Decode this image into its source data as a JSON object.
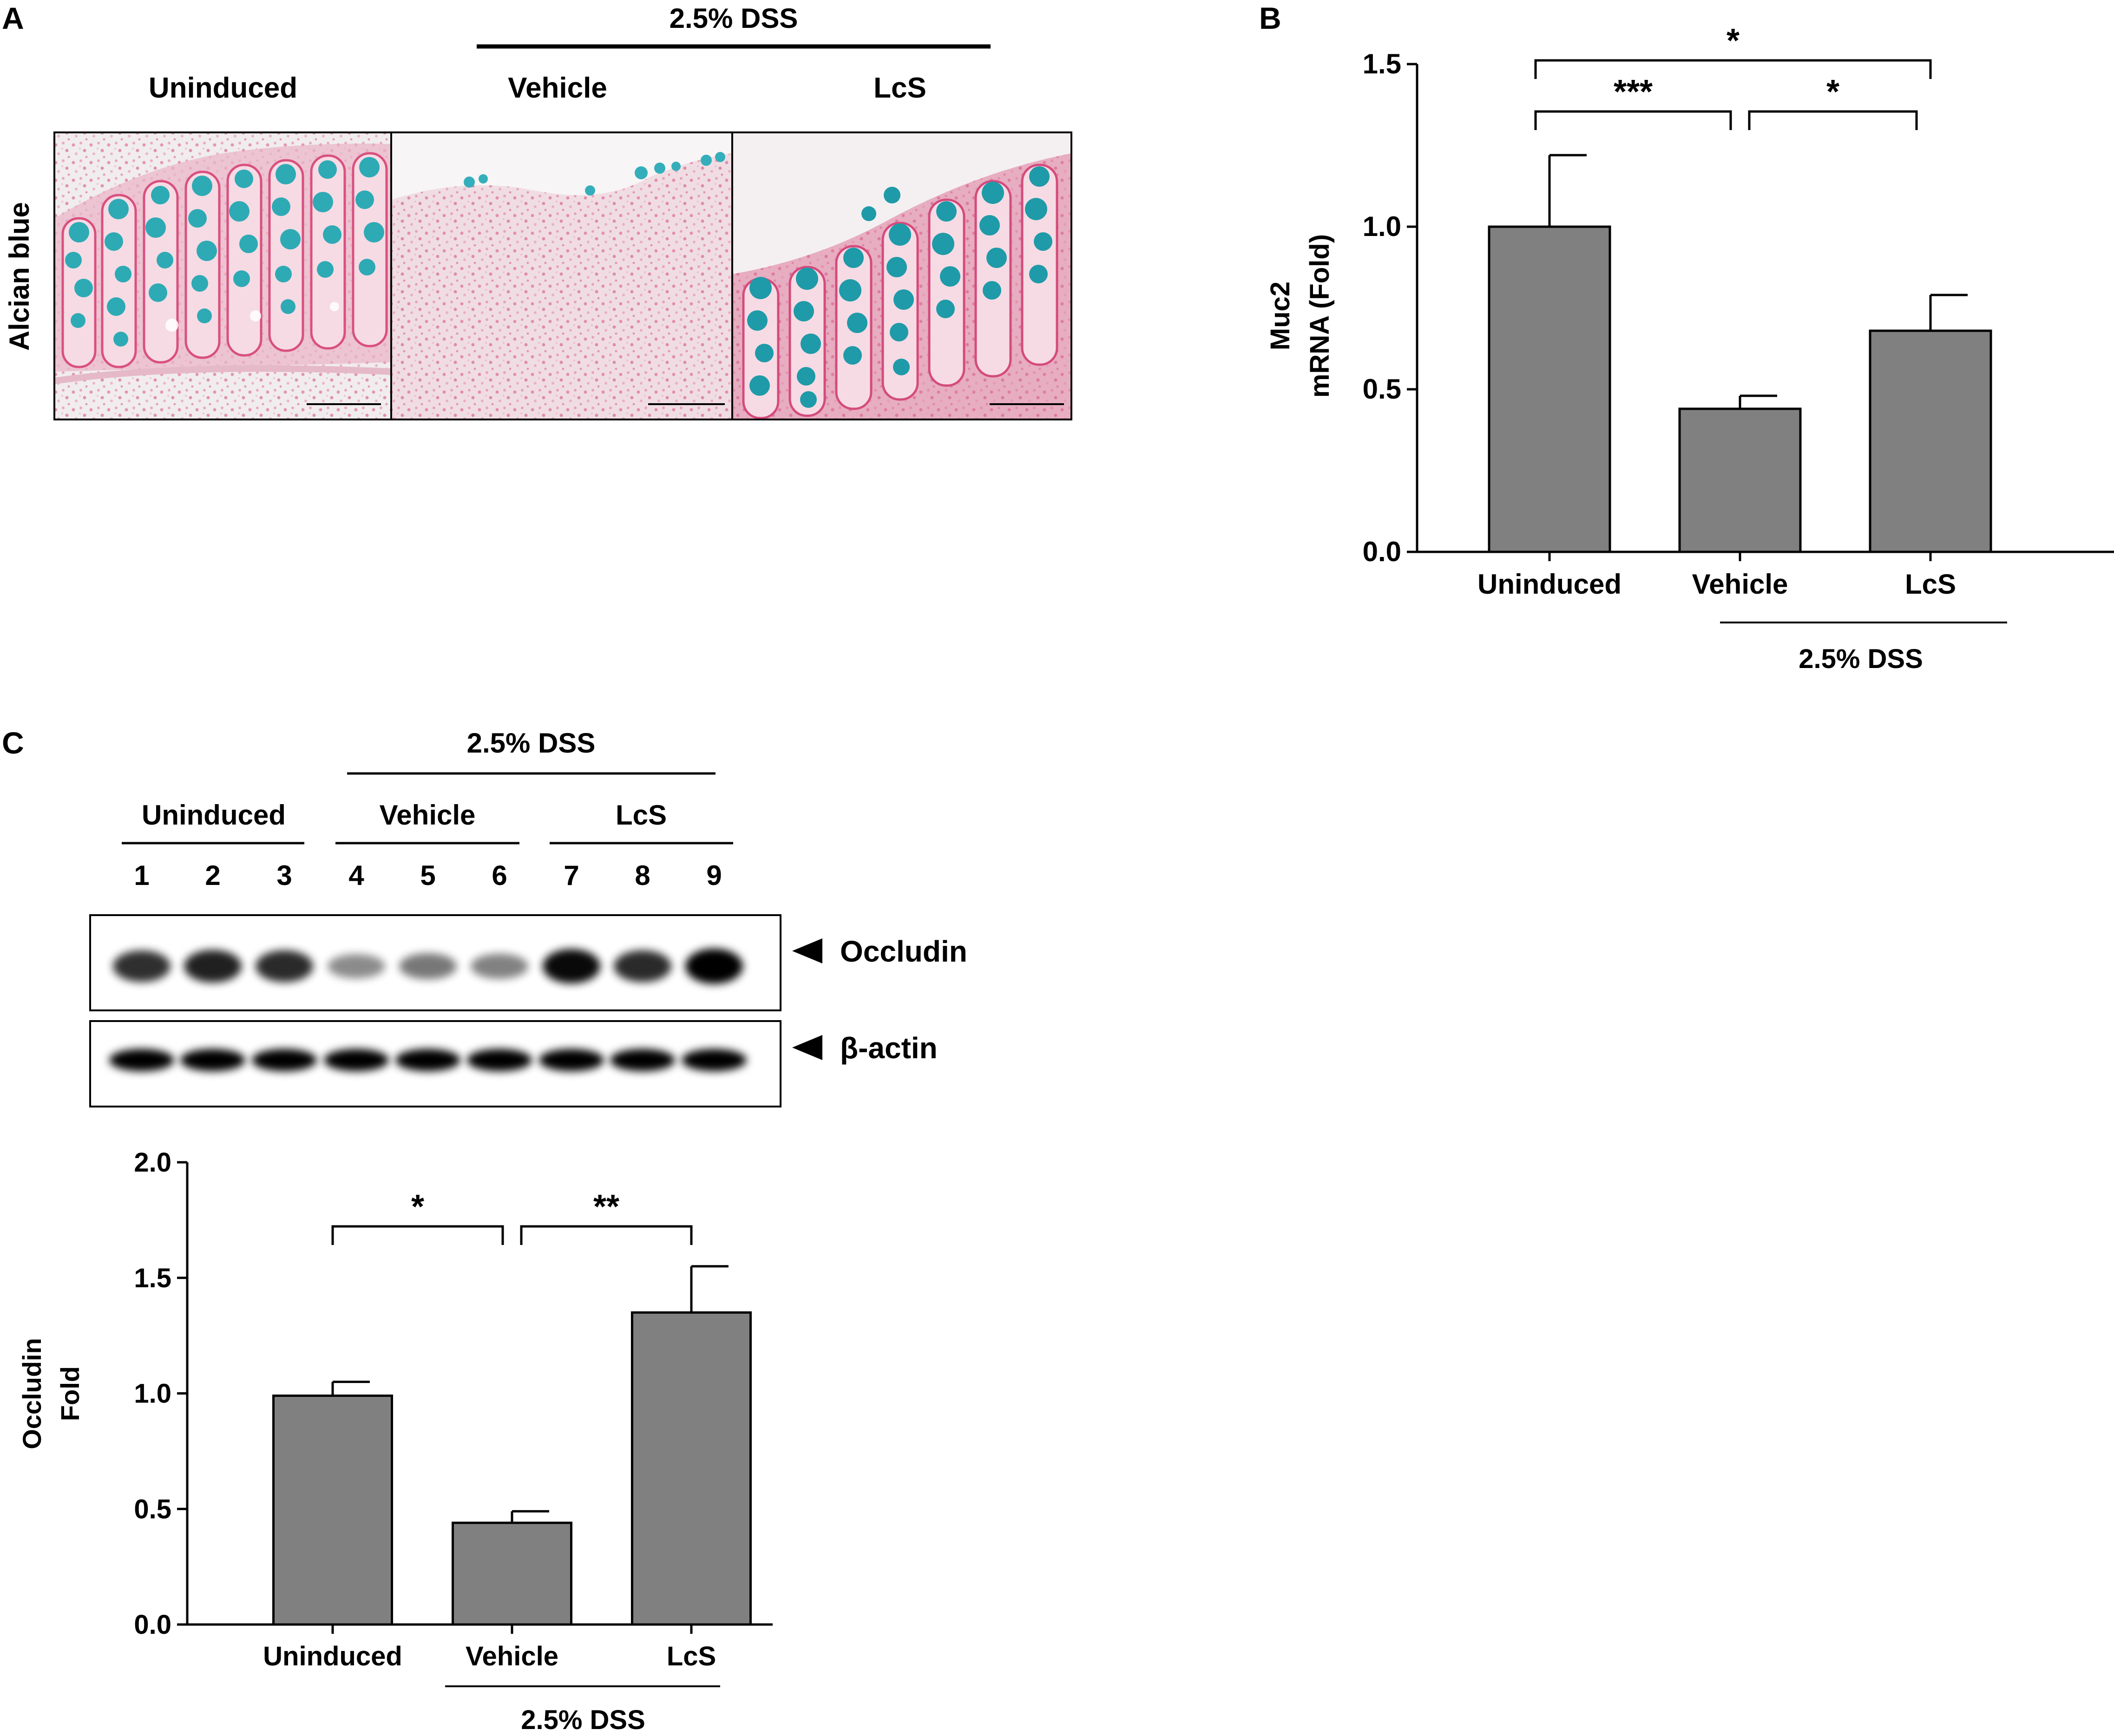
{
  "panel_a": {
    "letter": "A",
    "dss_label": "2.5% DSS",
    "col_labels": [
      "Uninduced",
      "Vehicle",
      "LcS"
    ],
    "row_label": "Alcian blue"
  },
  "panel_b": {
    "letter": "B",
    "ylabel_line1": "Muc2",
    "ylabel_line2": "mRNA (Fold)",
    "group_label": "2.5% DSS",
    "significance": [
      {
        "from": "Uninduced",
        "to": "LcS",
        "label": "*"
      },
      {
        "from": "Uninduced",
        "to": "Vehicle",
        "label": "***"
      },
      {
        "from": "Vehicle",
        "to": "LcS",
        "label": "*"
      }
    ]
  },
  "panel_c": {
    "letter": "C",
    "dss_label": "2.5% DSS",
    "group_labels": [
      "Uninduced",
      "Vehicle",
      "LcS"
    ],
    "lane_numbers": [
      "1",
      "2",
      "3",
      "4",
      "5",
      "6",
      "7",
      "8",
      "9"
    ],
    "blot_labels": [
      "Occludin",
      "β-actin"
    ],
    "occludin_band_intensity": [
      0.78,
      0.85,
      0.8,
      0.35,
      0.45,
      0.4,
      0.95,
      0.8,
      1.0
    ],
    "ylabel_line1": "Occludin",
    "ylabel_line2": "Fold",
    "group_label": "2.5% DSS",
    "significance": [
      {
        "from": "Uninduced",
        "to": "Vehicle",
        "label": "*"
      },
      {
        "from": "Vehicle",
        "to": "LcS",
        "label": "**"
      }
    ]
  },
  "chart_data": [
    {
      "type": "bar",
      "panel": "B",
      "title": "",
      "categories": [
        "Uninduced",
        "Vehicle",
        "LcS"
      ],
      "values": [
        1.0,
        0.44,
        0.68
      ],
      "errors": [
        0.22,
        0.04,
        0.11
      ],
      "ylabel": "Muc2 mRNA (Fold)",
      "ylim": [
        0,
        1.5
      ],
      "yticks": [
        "0.0",
        "0.5",
        "1.0",
        "1.5"
      ],
      "bar_color": "#808080",
      "grid": false
    },
    {
      "type": "bar",
      "panel": "C",
      "title": "",
      "categories": [
        "Uninduced",
        "Vehicle",
        "LcS"
      ],
      "values": [
        0.99,
        0.44,
        1.35
      ],
      "errors": [
        0.06,
        0.05,
        0.2
      ],
      "ylabel": "Occludin Fold",
      "ylim": [
        0,
        2.0
      ],
      "yticks": [
        "0.0",
        "0.5",
        "1.0",
        "1.5",
        "2.0"
      ],
      "bar_color": "#808080",
      "grid": false
    }
  ]
}
